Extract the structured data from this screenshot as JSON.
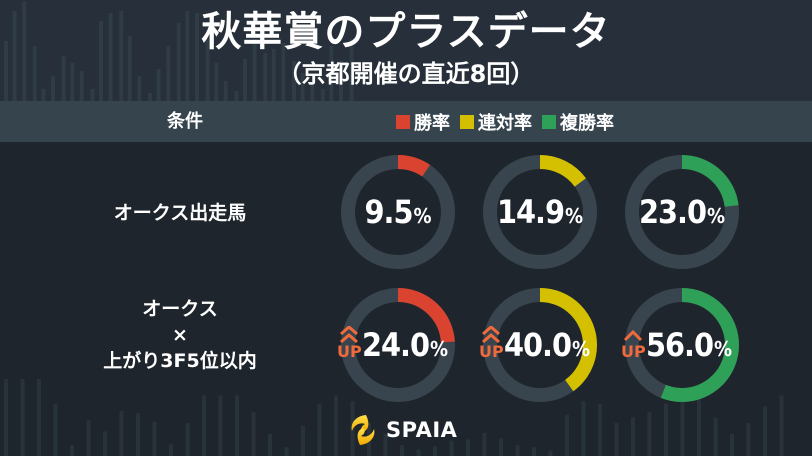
{
  "title": "秋華賞のプラスデータ",
  "subtitle": "（京都開催の直近8回）",
  "header": {
    "condition_label": "条件",
    "legend": [
      {
        "label": "勝率",
        "color": "#d9432f"
      },
      {
        "label": "連対率",
        "color": "#d4c000"
      },
      {
        "label": "複勝率",
        "color": "#2fa057"
      }
    ]
  },
  "rows": [
    {
      "label_lines": [
        "オークス出走馬"
      ],
      "values": [
        {
          "metric": "勝率",
          "value": 9.5,
          "display": "9.5",
          "unit": "%",
          "up": false
        },
        {
          "metric": "連対率",
          "value": 14.9,
          "display": "14.9",
          "unit": "%",
          "up": false
        },
        {
          "metric": "複勝率",
          "value": 23.0,
          "display": "23.0",
          "unit": "%",
          "up": false
        }
      ]
    },
    {
      "label_lines": [
        "オークス",
        "×",
        "上がり3F5位以内"
      ],
      "values": [
        {
          "metric": "勝率",
          "value": 24.0,
          "display": "24.0",
          "unit": "%",
          "up": true,
          "up_level": 2
        },
        {
          "metric": "連対率",
          "value": 40.0,
          "display": "40.0",
          "unit": "%",
          "up": true,
          "up_level": 2
        },
        {
          "metric": "複勝率",
          "value": 56.0,
          "display": "56.0",
          "unit": "%",
          "up": true,
          "up_level": 1
        }
      ]
    }
  ],
  "up_label": "UP",
  "up_color": "#f06a3c",
  "ring_track_color": "#39454e",
  "logo": {
    "text": "SPAIA",
    "icon": "spaia-swirl-icon"
  },
  "chart_data": {
    "type": "donut-grid",
    "title": "秋華賞のプラスデータ",
    "subtitle": "（京都開催の直近8回）",
    "categories": [
      "オークス出走馬",
      "オークス×上がり3F5位以内"
    ],
    "series": [
      {
        "name": "勝率",
        "color": "#d9432f",
        "values": [
          9.5,
          24.0
        ]
      },
      {
        "name": "連対率",
        "color": "#d4c000",
        "values": [
          14.9,
          40.0
        ]
      },
      {
        "name": "複勝率",
        "color": "#2fa057",
        "values": [
          23.0,
          56.0
        ]
      }
    ],
    "unit": "%",
    "ylim": [
      0,
      100
    ],
    "legend_position": "top-right header band"
  }
}
